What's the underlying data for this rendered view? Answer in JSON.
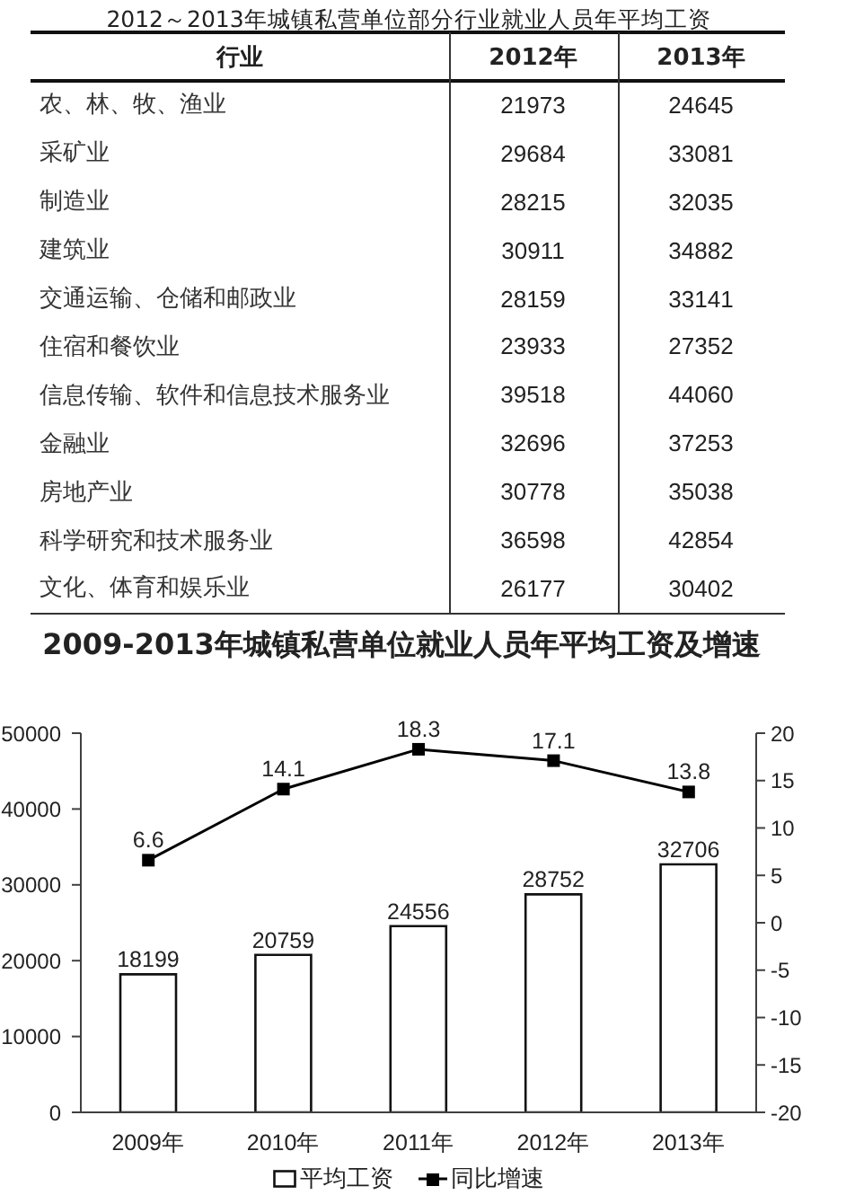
{
  "chart_data": [
    {
      "type": "other",
      "title": "2012～2013年城镇私营单位部分行业就业人员年平均工资",
      "ylabel": "行业",
      "categories": [
        "农、林、牧、渔业",
        "采矿业",
        "制造业",
        "建筑业",
        "交通运输、仓储和邮政业",
        "住宿和餐饮业",
        "信息传输、软件和信息技术服务业",
        "金融业",
        "房地产业",
        "科学研究和技术服务业",
        "文化、体育和娱乐业"
      ],
      "series": [
        {
          "name": "2012年",
          "values": [
            21973,
            29684,
            28215,
            30911,
            28159,
            23933,
            39518,
            32696,
            30778,
            36598,
            26177
          ]
        },
        {
          "name": "2013年",
          "values": [
            24645,
            33081,
            32035,
            34882,
            33141,
            27352,
            44060,
            37253,
            35038,
            42854,
            30402
          ]
        }
      ],
      "data_labels": true
    },
    {
      "type": "bar",
      "title": "2009-2013年城镇私营单位就业人员年平均工资及增速",
      "categories": [
        "2009年",
        "2010年",
        "2011年",
        "2012年",
        "2013年"
      ],
      "series": [
        {
          "name": "平均工资",
          "type": "bar",
          "color": "#ffffff",
          "values": [
            18199,
            20759,
            24556,
            28752,
            32706
          ]
        },
        {
          "name": "同比增速",
          "type": "line",
          "axis": "y2",
          "color": "#000000",
          "values": [
            6.6,
            14.1,
            18.3,
            17.1,
            13.8
          ]
        }
      ],
      "ylim": [
        0,
        50000
      ],
      "yticks": [
        0,
        10000,
        20000,
        30000,
        40000,
        50000
      ],
      "y2lim": [
        -20,
        20
      ],
      "y2ticks": [
        -20,
        -15,
        -10,
        -5,
        0,
        5,
        10,
        15,
        20
      ],
      "data_labels": true,
      "legend": "bottom",
      "marker": "square"
    }
  ]
}
